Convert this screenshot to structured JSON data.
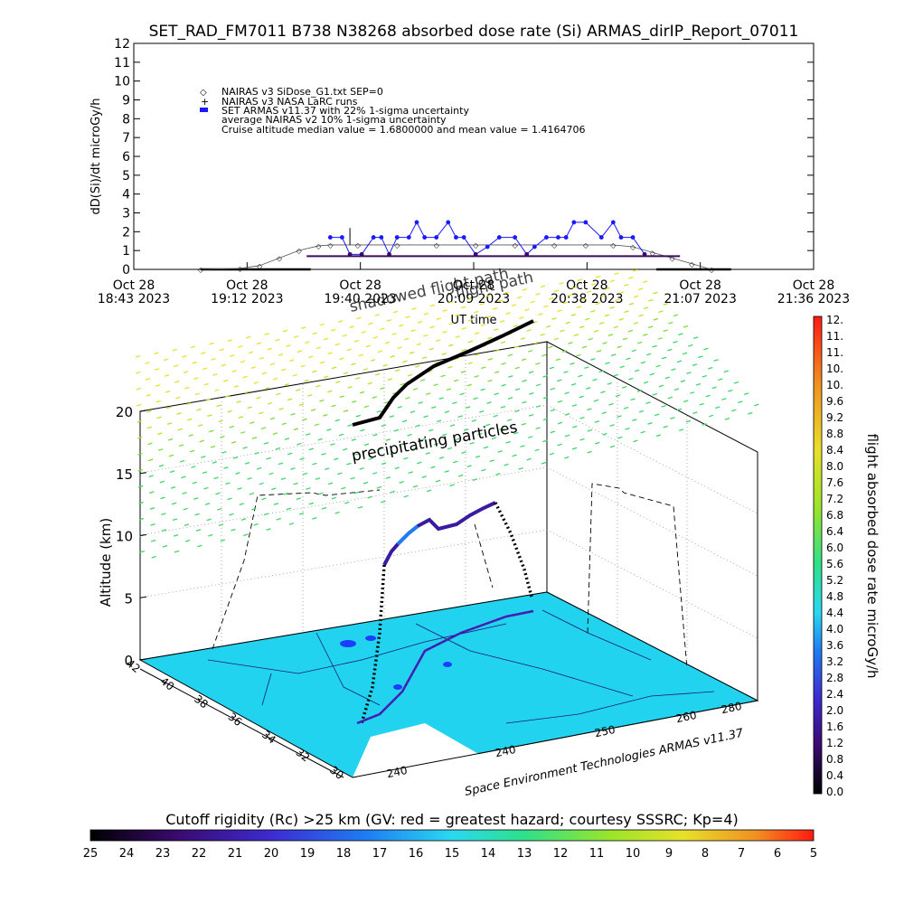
{
  "title": "SET_RAD_FM7011   B738 N38268 absorbed dose rate (Si) ARMAS_dirIP_Report_07011",
  "top_chart": {
    "ylabel": "dD(Si)/dt microGy/h",
    "xlabel": "UT time",
    "legend": [
      "NAIRAS v3 SiDose_G1.txt SEP=0",
      "NAIRAS v3 NASA LaRC runs",
      "SET ARMAS v11.37 with 22% 1-sigma uncertainty",
      "average NAIRAS v2 10% 1-sigma uncertainty",
      "Cruise altitude median value = 1.6800000 and mean value = 1.4164706"
    ],
    "x_ticks": [
      {
        "d": "Oct 28",
        "t": "18:43 2023"
      },
      {
        "d": "Oct 28",
        "t": "19:12 2023"
      },
      {
        "d": "Oct 28",
        "t": "19:40 2023"
      },
      {
        "d": "Oct 28",
        "t": "20:09 2023"
      },
      {
        "d": "Oct 28",
        "t": "20:38 2023"
      },
      {
        "d": "Oct 28",
        "t": "21:07 2023"
      },
      {
        "d": "Oct 28",
        "t": "21:36 2023"
      }
    ],
    "y_ticks": [
      "0",
      "1",
      "2",
      "3",
      "4",
      "5",
      "6",
      "7",
      "8",
      "9",
      "10",
      "11",
      "12"
    ]
  },
  "chart_data": [
    {
      "type": "line",
      "title": "SET_RAD_FM7011   B738 N38268 absorbed dose rate (Si) ARMAS_dirIP_Report_07011",
      "xlabel": "UT time",
      "ylabel": "dD(Si)/dt microGy/h",
      "x_range": [
        "2023-10-28 18:43",
        "2023-10-28 21:36"
      ],
      "ylim": [
        0,
        12
      ],
      "series": [
        {
          "name": "NAIRAS v3 SiDose_G1.txt SEP=0",
          "x": [
            "19:00",
            "19:10",
            "19:15",
            "19:20",
            "19:25",
            "19:30",
            "19:33",
            "19:40",
            "19:50",
            "20:00",
            "20:10",
            "20:20",
            "20:30",
            "20:38",
            "20:45",
            "20:50",
            "20:55",
            "21:00",
            "21:05",
            "21:10"
          ],
          "y": [
            0.0,
            0.05,
            0.2,
            0.6,
            1.0,
            1.25,
            1.3,
            1.3,
            1.3,
            1.3,
            1.3,
            1.3,
            1.3,
            1.3,
            1.3,
            1.2,
            0.9,
            0.6,
            0.3,
            0.0
          ]
        },
        {
          "name": "SET ARMAS v11.37 with 22% 1-sigma uncertainty",
          "x": [
            "19:33",
            "19:36",
            "19:38",
            "19:41",
            "19:44",
            "19:46",
            "19:48",
            "19:50",
            "19:53",
            "19:55",
            "19:57",
            "20:00",
            "20:03",
            "20:05",
            "20:07",
            "20:10",
            "20:13",
            "20:16",
            "20:20",
            "20:23",
            "20:25",
            "20:28",
            "20:31",
            "20:33",
            "20:35",
            "20:38",
            "20:42",
            "20:45",
            "20:47",
            "20:50",
            "20:53"
          ],
          "y": [
            1.7,
            1.7,
            0.8,
            0.8,
            1.7,
            1.7,
            0.8,
            1.7,
            1.7,
            2.5,
            1.7,
            1.7,
            2.5,
            1.7,
            1.7,
            0.8,
            1.2,
            1.7,
            1.7,
            0.8,
            1.2,
            1.7,
            1.7,
            1.7,
            2.5,
            2.5,
            1.7,
            2.5,
            1.7,
            1.7,
            0.8
          ]
        },
        {
          "name": "average NAIRAS v2 10% 1-sigma uncertainty",
          "x": [
            "19:27",
            "19:35",
            "19:45",
            "19:55",
            "20:05",
            "20:15",
            "20:25",
            "20:35",
            "20:45",
            "20:55",
            "21:02"
          ],
          "y": [
            0.7,
            0.7,
            0.7,
            0.7,
            0.7,
            0.7,
            0.7,
            0.7,
            0.7,
            0.7,
            0.7
          ]
        }
      ]
    },
    {
      "type": "scatter",
      "title": "Cutoff rigidity (Rc) >25 km (GV: red = greatest hazard; courtesy SSSRC; Kp=4)",
      "zlabel": "Altitude (km)",
      "zlim": [
        0,
        20
      ],
      "z_ticks": [
        "0",
        "5",
        "10",
        "15",
        "20"
      ],
      "annotations": [
        "flight path",
        "shadowed flight path",
        "precipitating particles"
      ],
      "footer": "Space Environment Technologies ARMAS v11.37",
      "colorbar_right": {
        "label": "flight absorbed dose rate microGy/h",
        "ticks": [
          "12.",
          "11.",
          "11.",
          "10.",
          "10.",
          "9.6",
          "9.2",
          "8.8",
          "8.4",
          "8.0",
          "7.6",
          "7.2",
          "6.8",
          "6.4",
          "6.0",
          "5.6",
          "5.2",
          "4.8",
          "4.4",
          "4.0",
          "3.6",
          "3.2",
          "2.8",
          "2.4",
          "2.0",
          "1.6",
          "1.2",
          "0.8",
          "0.4",
          "0.0"
        ]
      },
      "colorbar_bottom": {
        "label": "Cutoff rigidity (Rc) >25 km (GV: red = greatest hazard; courtesy SSSRC; Kp=4)",
        "ticks": [
          "25",
          "24",
          "23",
          "22",
          "21",
          "20",
          "19",
          "18",
          "17",
          "16",
          "15",
          "14",
          "13",
          "12",
          "11",
          "10",
          "9",
          "8",
          "7",
          "6",
          "5"
        ]
      },
      "lat_ticks": [
        "42",
        "40",
        "38",
        "36",
        "34",
        "32",
        "30"
      ],
      "lon_ticks": [
        "240",
        "240",
        "250",
        "260",
        "280"
      ]
    }
  ],
  "colors": {
    "armas": "#1a1aff",
    "nairas": "#222222",
    "map": "#22d3f0",
    "colorbar_stops": [
      "#000000",
      "#3a0a6e",
      "#3d2bd0",
      "#1f7cf2",
      "#2ad8f0",
      "#2fe08a",
      "#9be42a",
      "#e8e02a",
      "#f09022",
      "#ff1a12"
    ]
  }
}
